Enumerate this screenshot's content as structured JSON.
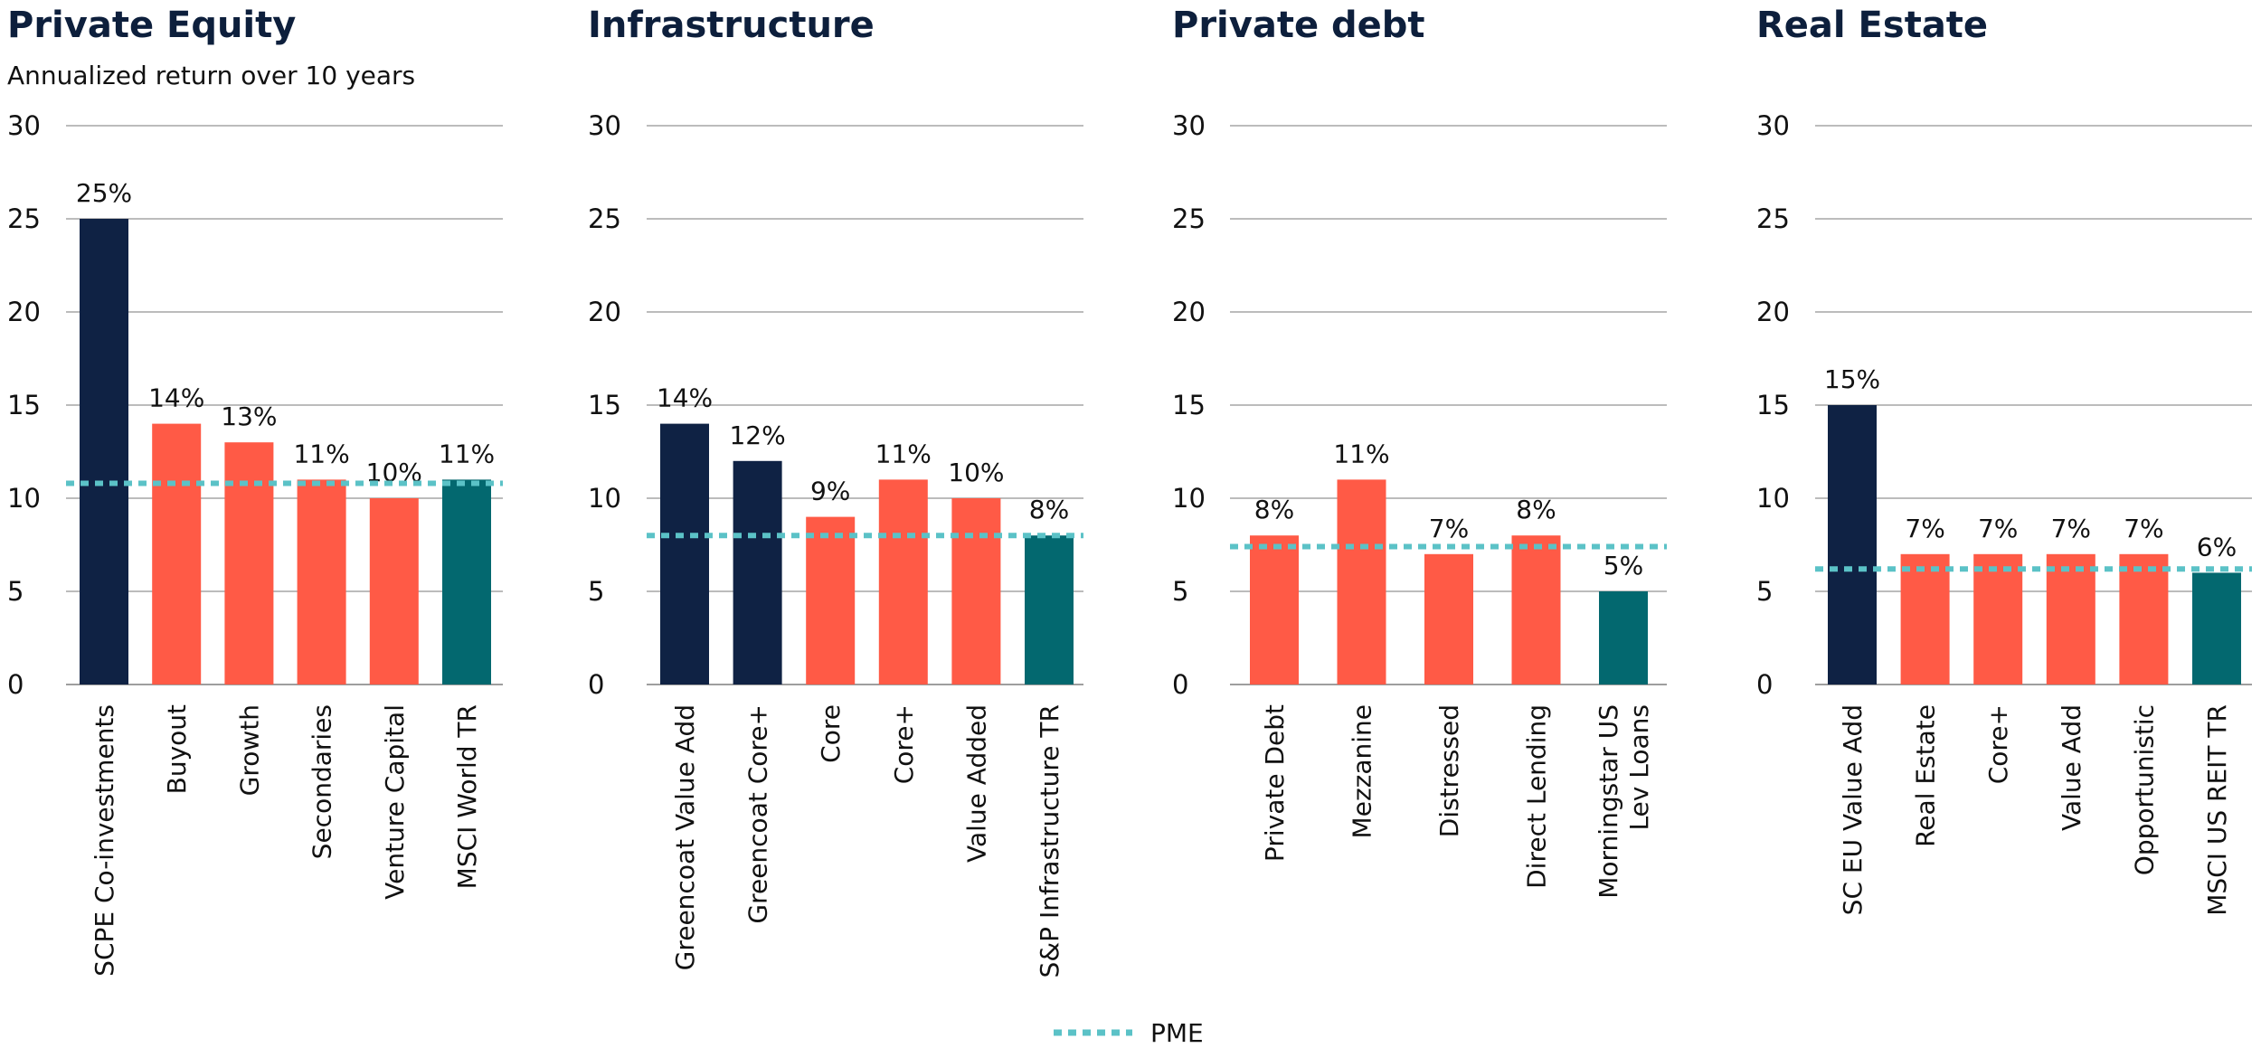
{
  "subtitle": "Annualized return over 10 years",
  "legend": {
    "label": "PME",
    "color": "#5bc2c7"
  },
  "colors": {
    "highlight": "#0f2244",
    "peer": "#ff5a46",
    "benchmark": "#03686f",
    "pme": "#5bc2c7"
  },
  "chart_data": [
    {
      "type": "bar",
      "title": "Private Equity",
      "ylim": [
        0,
        30
      ],
      "yticks": [
        0,
        5,
        10,
        15,
        20,
        25,
        30
      ],
      "categories": [
        "SCPE Co-investments",
        "Buyout",
        "Growth",
        "Secondaries",
        "Venture Capital",
        "MSCI World TR"
      ],
      "values": [
        25,
        14,
        13,
        11,
        10,
        11
      ],
      "data_labels": [
        "25%",
        "14%",
        "13%",
        "11%",
        "10%",
        "11%"
      ],
      "bar_kinds": [
        "highlight",
        "peer",
        "peer",
        "peer",
        "peer",
        "benchmark"
      ],
      "pme": 10.8,
      "grid": true
    },
    {
      "type": "bar",
      "title": "Infrastructure",
      "ylim": [
        0,
        30
      ],
      "yticks": [
        0,
        5,
        10,
        15,
        20,
        25,
        30
      ],
      "categories": [
        "Greencoat Value Add",
        "Greencoat Core+",
        "Core",
        "Core+",
        "Value Added",
        "S&P Infrastructure TR"
      ],
      "values": [
        14,
        12,
        9,
        11,
        10,
        8
      ],
      "data_labels": [
        "14%",
        "12%",
        "9%",
        "11%",
        "10%",
        "8%"
      ],
      "bar_kinds": [
        "highlight",
        "highlight",
        "peer",
        "peer",
        "peer",
        "benchmark"
      ],
      "pme": 8.0,
      "grid": true
    },
    {
      "type": "bar",
      "title": "Private debt",
      "ylim": [
        0,
        30
      ],
      "yticks": [
        0,
        5,
        10,
        15,
        20,
        25,
        30
      ],
      "categories": [
        "Private Debt",
        "Mezzanine",
        "Distressed",
        "Direct Lending",
        "Morningstar US|Lev Loans"
      ],
      "values": [
        8,
        11,
        7,
        8,
        5
      ],
      "data_labels": [
        "8%",
        "11%",
        "7%",
        "8%",
        "5%"
      ],
      "bar_kinds": [
        "peer",
        "peer",
        "peer",
        "peer",
        "benchmark"
      ],
      "pme": 7.4,
      "grid": true
    },
    {
      "type": "bar",
      "title": "Real Estate",
      "ylim": [
        0,
        30
      ],
      "yticks": [
        0,
        5,
        10,
        15,
        20,
        25,
        30
      ],
      "categories": [
        "SC EU Value Add",
        "Real Estate",
        "Core+",
        "Value Add",
        "Opportunistic",
        "MSCI US REIT TR"
      ],
      "values": [
        15,
        7,
        7,
        7,
        7,
        6
      ],
      "data_labels": [
        "15%",
        "7%",
        "7%",
        "7%",
        "7%",
        "6%"
      ],
      "bar_kinds": [
        "highlight",
        "peer",
        "peer",
        "peer",
        "peer",
        "benchmark"
      ],
      "pme": 6.2,
      "grid": true
    }
  ]
}
